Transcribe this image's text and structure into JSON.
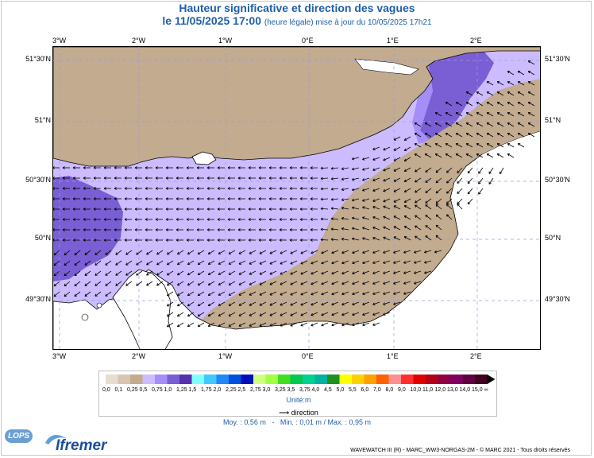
{
  "title": {
    "line1": "Hauteur significative et direction des vagues",
    "line2_main": "le 11/05/2025 17:00",
    "line2_sub": "(heure légale) mise à jour du 10/05/2025 17h21"
  },
  "map": {
    "lon_ticks": [
      "3°W",
      "2°W",
      "1°W",
      "0°E",
      "1°E",
      "2°E"
    ],
    "lat_ticks": [
      "51°30'N",
      "51°N",
      "50°30'N",
      "50°N",
      "49°30'N"
    ],
    "colors": {
      "land": "#c2ab8f",
      "low": "#ccbcff",
      "mid": "#a58ef7",
      "high": "#7a5ed4",
      "arrow": "#000000",
      "grid": "#9a9ae6"
    }
  },
  "legend": {
    "labels": [
      "0,0",
      "0,1",
      "0,25",
      "0,5",
      "0,75",
      "1,0",
      "1,25",
      "1,5",
      "1,75",
      "2,0",
      "2,25",
      "2,5",
      "2,75",
      "3,0",
      "3,25",
      "3,5",
      "3,75",
      "4,0",
      "4,5",
      "5,0",
      "5,5",
      "6,0",
      "7,0",
      "8,0",
      "9,0",
      "10,0",
      "11,0",
      "12,0",
      "13,0",
      "14,0",
      "15,0",
      "∞"
    ],
    "colors": [
      "#e8dccf",
      "#d7c5b2",
      "#c2ab8f",
      "#ccbcff",
      "#a58ef7",
      "#7a5ed4",
      "#5631b0",
      "#80ffff",
      "#40c8ff",
      "#2088f8",
      "#0050e0",
      "#0010b8",
      "#d0ff80",
      "#a0ff40",
      "#40e020",
      "#00c850",
      "#00d090",
      "#00b0a0",
      "#209020",
      "#ffff00",
      "#ffd000",
      "#ffa000",
      "#ff6000",
      "#ff9090",
      "#ff3030",
      "#e00000",
      "#b0001a",
      "#900040",
      "#800060",
      "#600040",
      "#400020"
    ],
    "unit": "Unité:m",
    "direction": "direction"
  },
  "stats": {
    "moy": "Moy. : 0,56 m",
    "sep": "-",
    "minmax": "Min. : 0,01 m / Max. : 0,95 m"
  },
  "footer": "WAVEWATCH III (R) - MARC_WW3-NORGAS-2M - © MARC 2021 - Tous droits réservés",
  "logos": {
    "lops": "LOPS",
    "ifremer": "Ifremer"
  }
}
